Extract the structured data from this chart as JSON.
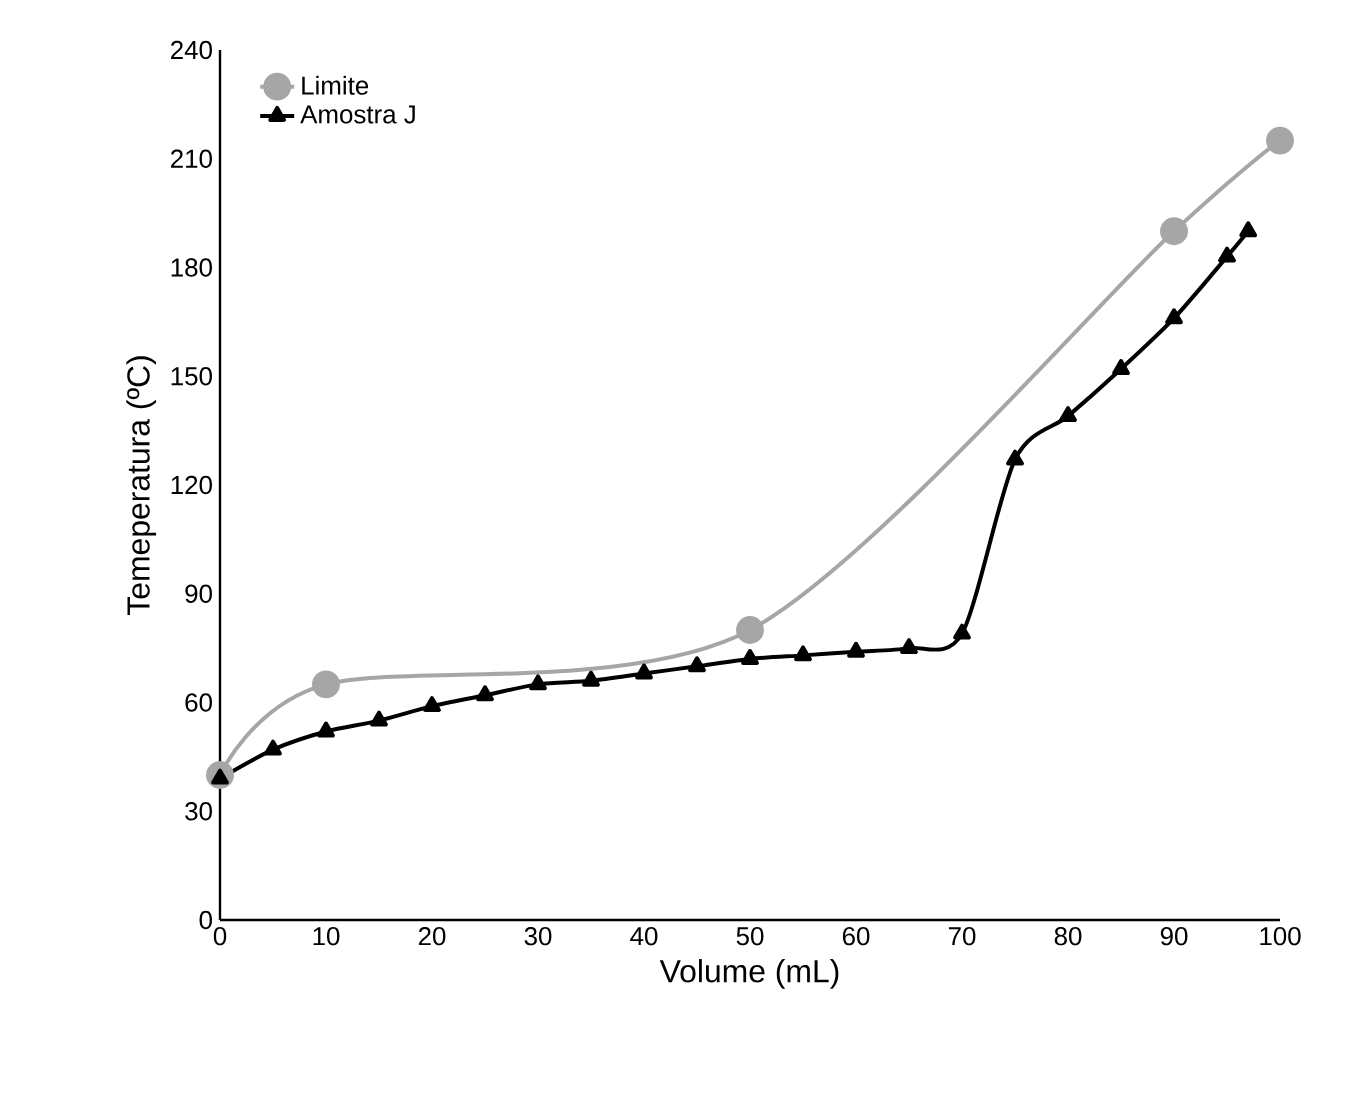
{
  "chart_data": {
    "type": "line",
    "xlabel": "Volume (mL)",
    "ylabel": "Temeperatura (ºC)",
    "xlim": [
      0,
      100
    ],
    "xticks": [
      0,
      10,
      20,
      30,
      40,
      50,
      60,
      70,
      80,
      90,
      100
    ],
    "ylim": [
      0,
      240
    ],
    "yticks": [
      0,
      30,
      60,
      90,
      120,
      150,
      180,
      210,
      240
    ],
    "grid": false,
    "legend": "top left",
    "series": [
      {
        "name": "Limite",
        "color": "#a6a6a6",
        "marker": "circle",
        "x": [
          0,
          10,
          50,
          90,
          100
        ],
        "values": [
          40,
          65,
          80,
          190,
          215
        ]
      },
      {
        "name": "Amostra J",
        "color": "#000000",
        "marker": "triangle",
        "x": [
          0,
          5,
          10,
          15,
          20,
          25,
          30,
          35,
          40,
          45,
          50,
          55,
          60,
          65,
          70,
          75,
          80,
          85,
          90,
          95,
          97
        ],
        "values": [
          39,
          47,
          52,
          55,
          59,
          62,
          65,
          66,
          68,
          70,
          72,
          73,
          74,
          75,
          79,
          127,
          139,
          152,
          166,
          183,
          190
        ]
      }
    ]
  }
}
